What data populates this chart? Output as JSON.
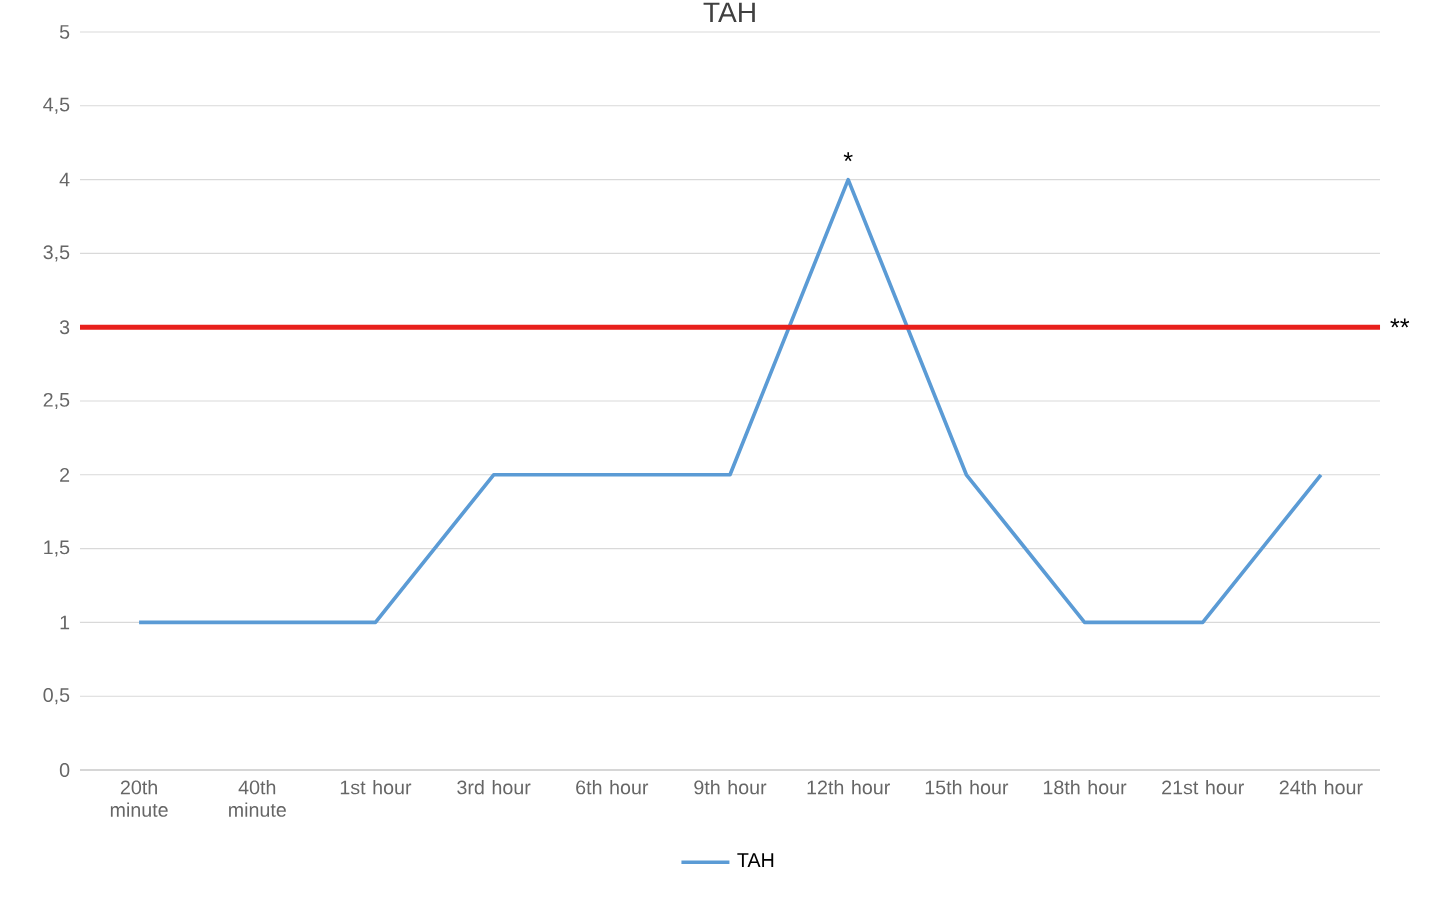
{
  "chart_data": {
    "type": "line",
    "title": "TAH",
    "categories": [
      "20th minute",
      "40th minute",
      "1st hour",
      "3rd hour",
      "6th hour",
      "9th hour",
      "12th hour",
      "15th hour",
      "18th hour",
      "21st hour",
      "24th hour"
    ],
    "series": [
      {
        "name": "TAH",
        "color": "#5b9bd5",
        "values": [
          1,
          1,
          1,
          2,
          2,
          2,
          4,
          2,
          1,
          1,
          2
        ]
      }
    ],
    "ylim": [
      0,
      5
    ],
    "yticks": [
      0,
      {
        "value": 0.5,
        "label": "0,5"
      },
      1,
      {
        "value": 1.5,
        "label": "1,5"
      },
      2,
      {
        "value": 2.5,
        "label": "2,5"
      },
      3,
      {
        "value": 3.5,
        "label": "3,5"
      },
      4,
      {
        "value": 4.5,
        "label": "4,5"
      },
      5
    ],
    "grid": "y",
    "legend": "bottom",
    "ref_lines": [
      {
        "axis": "y",
        "value": 3,
        "label": "**",
        "color": "#e8201c"
      }
    ],
    "annotations": [
      {
        "text": "*",
        "x": "12th hour",
        "y": 4
      }
    ]
  }
}
